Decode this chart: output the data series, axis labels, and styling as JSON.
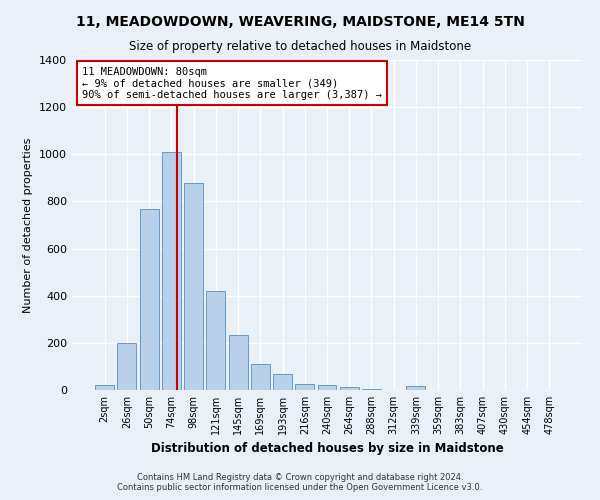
{
  "title": "11, MEADOWDOWN, WEAVERING, MAIDSTONE, ME14 5TN",
  "subtitle": "Size of property relative to detached houses in Maidstone",
  "xlabel": "Distribution of detached houses by size in Maidstone",
  "ylabel": "Number of detached properties",
  "categories": [
    "2sqm",
    "26sqm",
    "50sqm",
    "74sqm",
    "98sqm",
    "121sqm",
    "145sqm",
    "169sqm",
    "193sqm",
    "216sqm",
    "240sqm",
    "264sqm",
    "288sqm",
    "312sqm",
    "339sqm",
    "359sqm",
    "383sqm",
    "407sqm",
    "430sqm",
    "454sqm",
    "478sqm"
  ],
  "bar_values": [
    20,
    200,
    770,
    1010,
    880,
    420,
    235,
    110,
    70,
    25,
    22,
    12,
    5,
    0,
    15,
    0,
    0,
    0,
    0,
    0,
    0
  ],
  "bar_color": "#b8d0ea",
  "bar_edge_color": "#6699cc",
  "ylim": [
    0,
    1400
  ],
  "yticks": [
    0,
    200,
    400,
    600,
    800,
    1000,
    1200,
    1400
  ],
  "annotation_line1": "11 MEADOWDOWN: 80sqm",
  "annotation_line2": "← 9% of detached houses are smaller (349)",
  "annotation_line3": "90% of semi-detached houses are larger (3,387) →",
  "annotation_box_color": "#ffffff",
  "annotation_box_edge": "#cc0000",
  "vline_color": "#cc0000",
  "background_color": "#eaf0f8",
  "grid_color": "#ffffff",
  "footer1": "Contains HM Land Registry data © Crown copyright and database right 2024.",
  "footer2": "Contains public sector information licensed under the Open Government Licence v3.0."
}
